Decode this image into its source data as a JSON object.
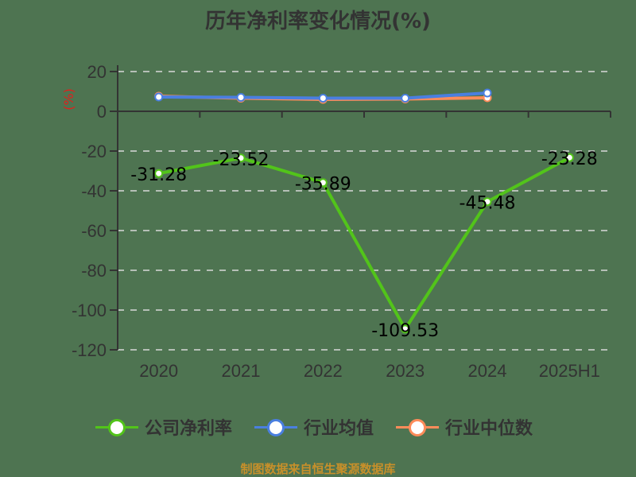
{
  "title": "历年净利率变化情况(%)",
  "source": "制图数据来自恒生聚源数据库",
  "colors": {
    "company": "#52c41a",
    "industry_avg": "#4a7fe0",
    "industry_median": "#ff8c5a",
    "axis": "#333333",
    "grid": "#d9d9d9",
    "ylabel": "#e0201c",
    "background": "#4e7451"
  },
  "chart_data": {
    "type": "line",
    "title": "历年净利率变化情况(%)",
    "xlabel": "",
    "ylabel": "(%)",
    "categories": [
      "2020",
      "2021",
      "2022",
      "2023",
      "2024",
      "2025H1"
    ],
    "ylim": [
      -120,
      20
    ],
    "yticks": [
      20,
      0,
      -20,
      -40,
      -60,
      -80,
      -100,
      -120
    ],
    "grid": true,
    "legend_position": "bottom",
    "series": [
      {
        "name": "公司净利率",
        "values": [
          -31.28,
          -23.52,
          -35.89,
          -109.53,
          -45.48,
          -23.28
        ],
        "labels": [
          "-31.28",
          "-23.52",
          "-35.89",
          "-109.53",
          "-45.48",
          "-23.28"
        ]
      },
      {
        "name": "行业均值",
        "values": [
          7.2,
          7.0,
          6.6,
          6.6,
          9.2,
          null
        ]
      },
      {
        "name": "行业中位数",
        "values": [
          7.6,
          6.6,
          6.0,
          6.2,
          6.8,
          null
        ]
      }
    ]
  }
}
